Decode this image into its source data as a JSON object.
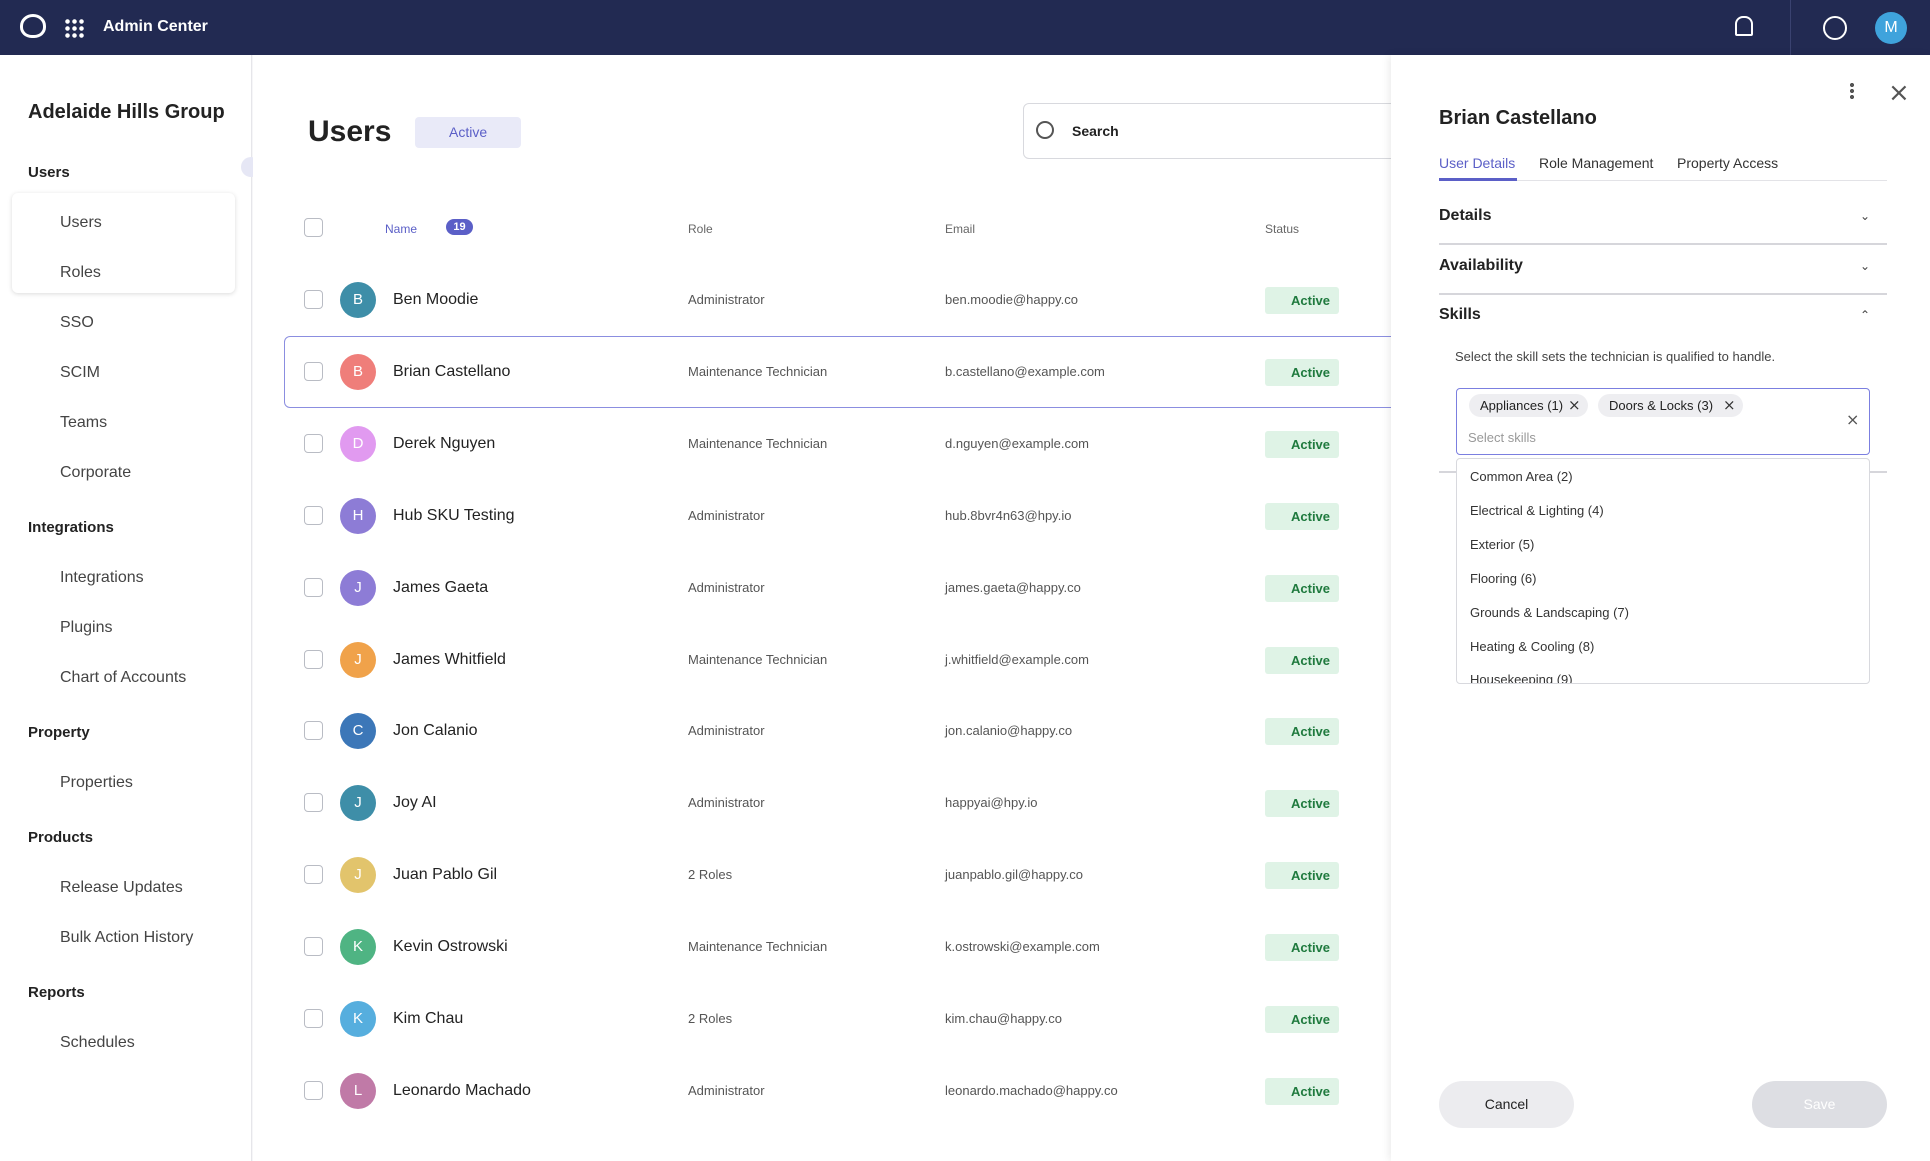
{
  "header": {
    "title": "Admin Center",
    "avatar": "M"
  },
  "sidebar": {
    "org": "Adelaide Hills Group",
    "sections": [
      {
        "title": "Users",
        "items": [
          "Users",
          "Roles",
          "SSO",
          "SCIM",
          "Teams",
          "Corporate"
        ]
      },
      {
        "title": "Integrations",
        "items": [
          "Integrations",
          "Plugins",
          "Chart of Accounts"
        ]
      },
      {
        "title": "Property",
        "items": [
          "Properties"
        ]
      },
      {
        "title": "Products",
        "items": [
          "Release Updates",
          "Bulk Action History"
        ]
      },
      {
        "title": "Reports",
        "items": [
          "Schedules"
        ]
      }
    ]
  },
  "main": {
    "title": "Users",
    "filter": "Active",
    "search": "Search",
    "count": "19",
    "columns": [
      "Name",
      "Role",
      "Email",
      "Status"
    ],
    "rows": [
      {
        "initial": "B",
        "color": "#3e8ea8",
        "name": "Ben Moodie",
        "role": "Administrator",
        "email": "ben.moodie@happy.co",
        "status": "Active"
      },
      {
        "initial": "B",
        "color": "#ef7e7a",
        "name": "Brian Castellano",
        "role": "Maintenance Technician",
        "email": "b.castellano@example.com",
        "status": "Active"
      },
      {
        "initial": "D",
        "color": "#e19af0",
        "name": "Derek Nguyen",
        "role": "Maintenance Technician",
        "email": "d.nguyen@example.com",
        "status": "Active"
      },
      {
        "initial": "H",
        "color": "#8d7cd6",
        "name": "Hub SKU Testing",
        "role": "Administrator",
        "email": "hub.8bvr4n63@hpy.io",
        "status": "Active"
      },
      {
        "initial": "J",
        "color": "#8d7cd6",
        "name": "James Gaeta",
        "role": "Administrator",
        "email": "james.gaeta@happy.co",
        "status": "Active"
      },
      {
        "initial": "J",
        "color": "#f0a24a",
        "name": "James Whitfield",
        "role": "Maintenance Technician",
        "email": "j.whitfield@example.com",
        "status": "Active"
      },
      {
        "initial": "C",
        "color": "#3c77b8",
        "name": "Jon Calanio",
        "role": "Administrator",
        "email": "jon.calanio@happy.co",
        "status": "Active"
      },
      {
        "initial": "J",
        "color": "#3e8ea8",
        "name": "Joy AI",
        "role": "Administrator",
        "email": "happyai@hpy.io",
        "status": "Active"
      },
      {
        "initial": "J",
        "color": "#e2c46c",
        "name": "Juan Pablo Gil",
        "role": "2 Roles",
        "email": "juanpablo.gil@happy.co",
        "status": "Active"
      },
      {
        "initial": "K",
        "color": "#4fb483",
        "name": "Kevin Ostrowski",
        "role": "Maintenance Technician",
        "email": "k.ostrowski@example.com",
        "status": "Active"
      },
      {
        "initial": "K",
        "color": "#56aede",
        "name": "Kim Chau",
        "role": "2 Roles",
        "email": "kim.chau@happy.co",
        "status": "Active"
      },
      {
        "initial": "L",
        "color": "#c07aa7",
        "name": "Leonardo Machado",
        "role": "Administrator",
        "email": "leonardo.machado@happy.co",
        "status": "Active"
      }
    ]
  },
  "panel": {
    "title": "Brian Castellano",
    "tabs": [
      "User Details",
      "Role Management",
      "Property Access"
    ],
    "sections": [
      "Details",
      "Availability",
      "Skills"
    ],
    "hint": "Select the skill sets the technician is qualified to handle.",
    "tags": [
      "Appliances (1)",
      "Doors & Locks (3)"
    ],
    "placeholder": "Select skills",
    "options": [
      "Common Area (2)",
      "Electrical & Lighting (4)",
      "Exterior (5)",
      "Flooring (6)",
      "Grounds & Landscaping (7)",
      "Heating & Cooling (8)",
      "Housekeeping (9)"
    ],
    "cancel": "Cancel",
    "save": "Save"
  }
}
